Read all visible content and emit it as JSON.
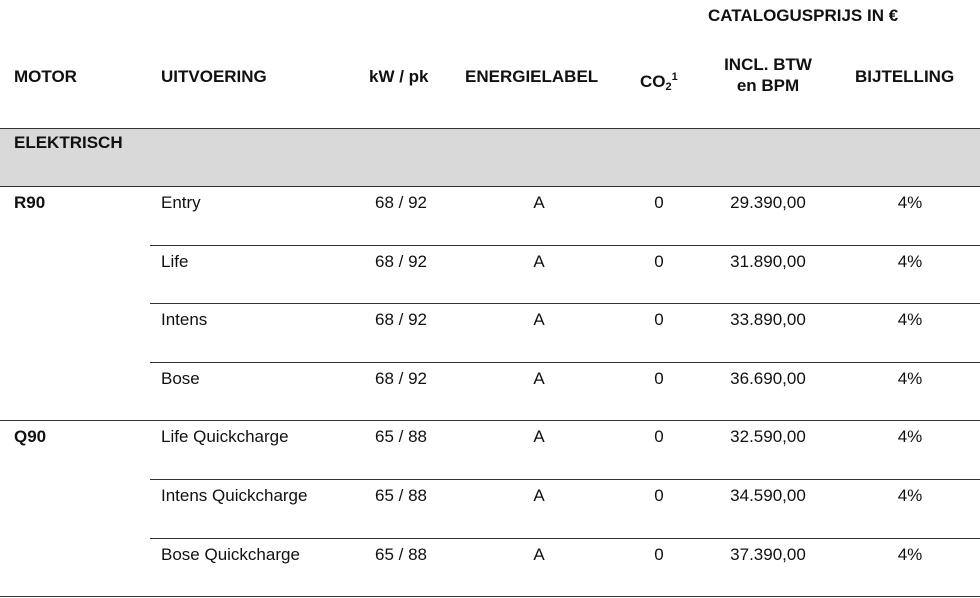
{
  "header": {
    "price_group": "CATALOGUSPRIJS IN €",
    "motor": "MOTOR",
    "uitvoering": "UITVOERING",
    "kw_pk": "kW / pk",
    "energielabel": "ENERGIELABEL",
    "co2_main": "CO",
    "co2_sub": "2",
    "co2_sup": "1",
    "price_line1": "INCL. BTW",
    "price_line2": "en BPM",
    "bijtelling": "BIJTELLING"
  },
  "section": {
    "label": "ELEKTRISCH"
  },
  "groups": [
    {
      "motor": "R90",
      "rows": [
        {
          "uitvoering": "Entry",
          "kw_pk": "68 / 92",
          "energielabel": "A",
          "co2": "0",
          "price": "29.390,00",
          "bijtelling": "4%"
        },
        {
          "uitvoering": "Life",
          "kw_pk": "68 / 92",
          "energielabel": "A",
          "co2": "0",
          "price": "31.890,00",
          "bijtelling": "4%"
        },
        {
          "uitvoering": "Intens",
          "kw_pk": "68 / 92",
          "energielabel": "A",
          "co2": "0",
          "price": "33.890,00",
          "bijtelling": "4%"
        },
        {
          "uitvoering": "Bose",
          "kw_pk": "68 / 92",
          "energielabel": "A",
          "co2": "0",
          "price": "36.690,00",
          "bijtelling": "4%"
        }
      ]
    },
    {
      "motor": "Q90",
      "rows": [
        {
          "uitvoering": "Life Quickcharge",
          "kw_pk": "65 / 88",
          "energielabel": "A",
          "co2": "0",
          "price": "32.590,00",
          "bijtelling": "4%"
        },
        {
          "uitvoering": "Intens Quickcharge",
          "kw_pk": "65 / 88",
          "energielabel": "A",
          "co2": "0",
          "price": "34.590,00",
          "bijtelling": "4%"
        },
        {
          "uitvoering": "Bose Quickcharge",
          "kw_pk": "65 / 88",
          "energielabel": "A",
          "co2": "0",
          "price": "37.390,00",
          "bijtelling": "4%"
        }
      ]
    }
  ]
}
